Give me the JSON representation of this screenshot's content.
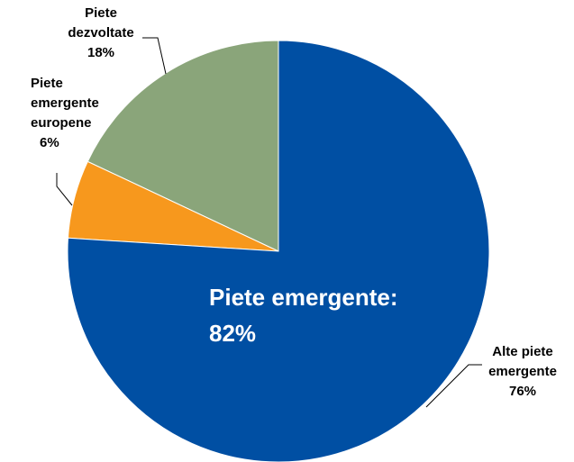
{
  "chart_data": {
    "type": "pie",
    "categories": [
      "Alte piete emergente",
      "Piete emergente europene",
      "Piete dezvoltate"
    ],
    "values": [
      76,
      6,
      18
    ],
    "value_labels": [
      "76%",
      "6%",
      "18%"
    ],
    "colors": [
      "#004fa3",
      "#f7981d",
      "#8aa57a"
    ],
    "annotation": "Piete emergente: 82%"
  }
}
